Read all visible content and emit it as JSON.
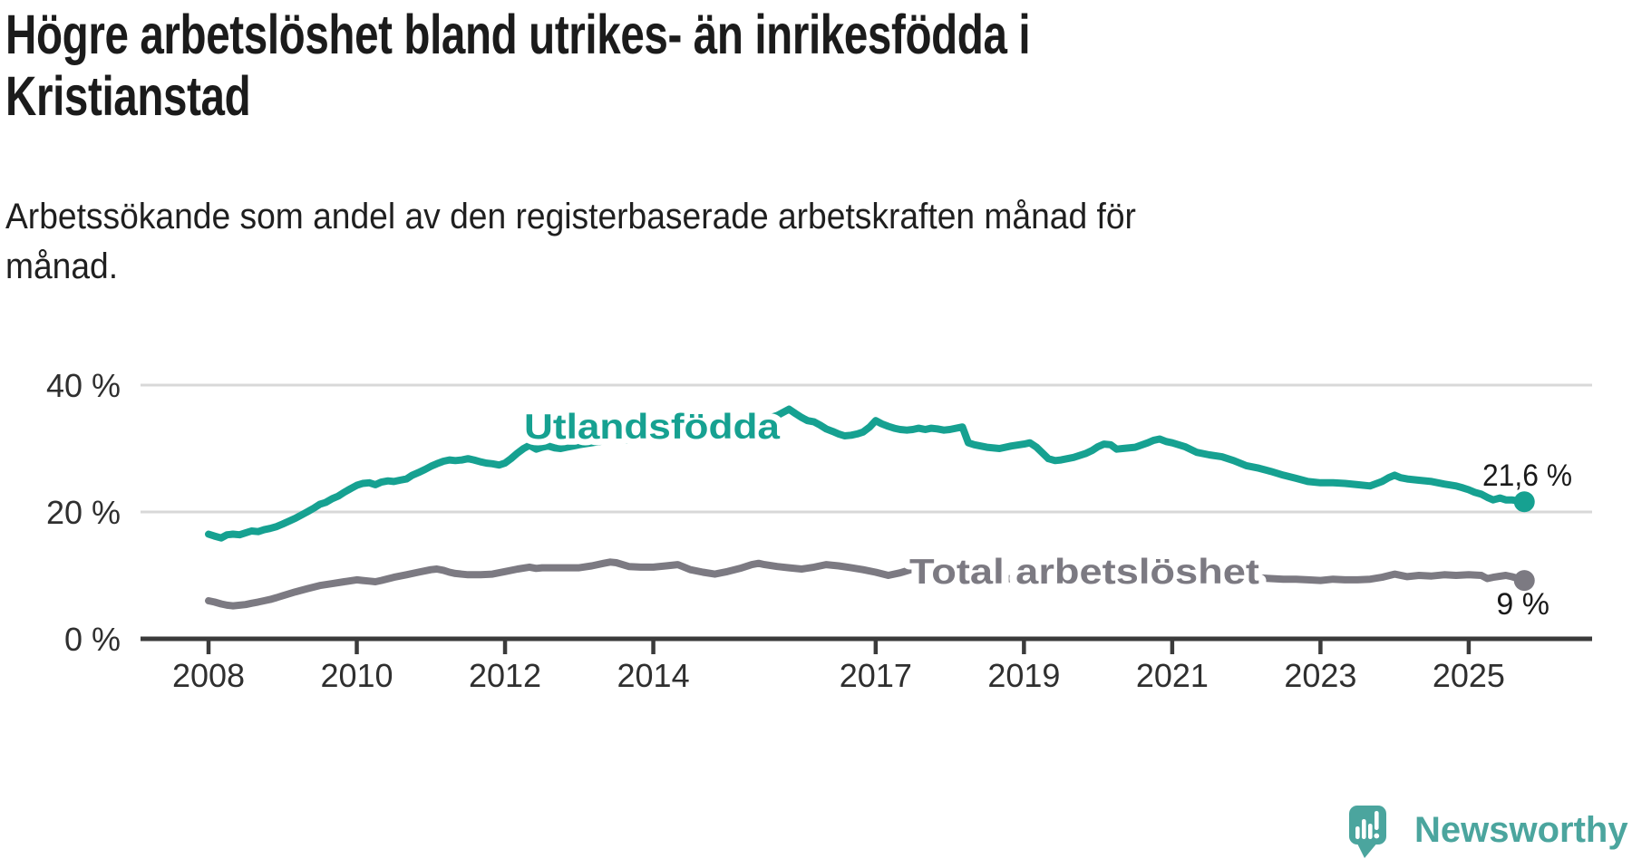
{
  "header": {
    "title_line1": "Högre arbetslöshet bland utrikes- än inrikesfödda i",
    "title_line2": "Kristianstad",
    "subtitle_line1": "Arbetssökande som andel av den registerbaserade arbetskraften månad för",
    "subtitle_line2": "månad."
  },
  "branding": {
    "logo_text": "Newsworthy",
    "logo_icon": "speech-bubble-bar-chart-icon",
    "logo_color": "#4BA59E"
  },
  "colors": {
    "series_foreign": "#16A191",
    "series_total": "#7C7A82",
    "title_text": "#1b1b1b",
    "axis_text": "#2f2f2f",
    "value_label_text": "#1a1a1a",
    "gridline": "#d8d8d8",
    "axis_line": "#3b3b3b",
    "background": "#ffffff"
  },
  "chart_data": {
    "type": "line",
    "title": "Högre arbetslöshet bland utrikes- än inrikesfödda i Kristianstad",
    "subtitle": "Arbetssökande som andel av den registerbaserade arbetskraften månad för månad.",
    "grid": "horizontal-only",
    "x_axis": {
      "range": [
        2007.7,
        2026.1
      ],
      "ticks": [
        {
          "year": 2008,
          "label": "2008"
        },
        {
          "year": 2010,
          "label": "2010"
        },
        {
          "year": 2012,
          "label": "2012"
        },
        {
          "year": 2014,
          "label": "2014"
        },
        {
          "year": 2017,
          "label": "2017"
        },
        {
          "year": 2019,
          "label": "2019"
        },
        {
          "year": 2021,
          "label": "2021"
        },
        {
          "year": 2023,
          "label": "2023"
        },
        {
          "year": 2025,
          "label": "2025"
        }
      ]
    },
    "y_axis": {
      "range": [
        0,
        40
      ],
      "unit": "%",
      "ticks": [
        {
          "value": 0,
          "label": "0 %"
        },
        {
          "value": 20,
          "label": "20 %"
        },
        {
          "value": 40,
          "label": "40 %"
        }
      ]
    },
    "series": [
      {
        "name": "Utlandsfödda",
        "color": "#16A191",
        "end_value": 21.6,
        "end_label": "21,6 %",
        "points": [
          [
            2008.0,
            16.5
          ],
          [
            2008.08,
            16.2
          ],
          [
            2008.17,
            15.9
          ],
          [
            2008.25,
            16.4
          ],
          [
            2008.33,
            16.5
          ],
          [
            2008.42,
            16.4
          ],
          [
            2008.5,
            16.7
          ],
          [
            2008.58,
            17.0
          ],
          [
            2008.67,
            16.9
          ],
          [
            2008.75,
            17.2
          ],
          [
            2008.83,
            17.4
          ],
          [
            2008.92,
            17.7
          ],
          [
            2009.0,
            18.1
          ],
          [
            2009.17,
            19.0
          ],
          [
            2009.33,
            20.0
          ],
          [
            2009.42,
            20.6
          ],
          [
            2009.5,
            21.2
          ],
          [
            2009.58,
            21.5
          ],
          [
            2009.67,
            22.1
          ],
          [
            2009.75,
            22.5
          ],
          [
            2009.83,
            23.1
          ],
          [
            2009.92,
            23.7
          ],
          [
            2010.0,
            24.2
          ],
          [
            2010.08,
            24.5
          ],
          [
            2010.17,
            24.6
          ],
          [
            2010.25,
            24.3
          ],
          [
            2010.33,
            24.7
          ],
          [
            2010.42,
            24.9
          ],
          [
            2010.5,
            24.8
          ],
          [
            2010.58,
            25.0
          ],
          [
            2010.67,
            25.2
          ],
          [
            2010.75,
            25.8
          ],
          [
            2010.83,
            26.2
          ],
          [
            2010.92,
            26.7
          ],
          [
            2011.0,
            27.2
          ],
          [
            2011.08,
            27.6
          ],
          [
            2011.17,
            28.0
          ],
          [
            2011.25,
            28.2
          ],
          [
            2011.33,
            28.1
          ],
          [
            2011.42,
            28.2
          ],
          [
            2011.5,
            28.4
          ],
          [
            2011.58,
            28.2
          ],
          [
            2011.67,
            27.9
          ],
          [
            2011.75,
            27.7
          ],
          [
            2011.83,
            27.6
          ],
          [
            2011.92,
            27.4
          ],
          [
            2012.0,
            27.7
          ],
          [
            2012.08,
            28.4
          ],
          [
            2012.17,
            29.3
          ],
          [
            2012.25,
            30.0
          ],
          [
            2012.33,
            30.5
          ],
          [
            2012.42,
            29.9
          ],
          [
            2012.5,
            30.2
          ],
          [
            2012.58,
            30.4
          ],
          [
            2012.67,
            30.1
          ],
          [
            2012.75,
            30.0
          ],
          [
            2012.83,
            30.2
          ],
          [
            2012.92,
            30.4
          ],
          [
            2013.0,
            30.6
          ],
          [
            2013.17,
            30.9
          ],
          [
            2013.33,
            31.2
          ],
          [
            2013.5,
            31.5
          ],
          [
            2013.67,
            31.3
          ],
          [
            2013.83,
            31.6
          ],
          [
            2014.0,
            31.9
          ],
          [
            2014.17,
            32.2
          ],
          [
            2014.33,
            32.0
          ],
          [
            2014.5,
            32.3
          ],
          [
            2014.67,
            32.6
          ],
          [
            2014.83,
            32.9
          ],
          [
            2015.0,
            33.2
          ],
          [
            2015.17,
            33.6
          ],
          [
            2015.33,
            34.0
          ],
          [
            2015.5,
            34.6
          ],
          [
            2015.67,
            35.2
          ],
          [
            2015.83,
            36.2
          ],
          [
            2015.92,
            35.5
          ],
          [
            2016.0,
            34.9
          ],
          [
            2016.08,
            34.4
          ],
          [
            2016.17,
            34.2
          ],
          [
            2016.25,
            33.7
          ],
          [
            2016.33,
            33.1
          ],
          [
            2016.42,
            32.7
          ],
          [
            2016.5,
            32.3
          ],
          [
            2016.58,
            32.0
          ],
          [
            2016.67,
            32.1
          ],
          [
            2016.75,
            32.3
          ],
          [
            2016.83,
            32.6
          ],
          [
            2016.92,
            33.4
          ],
          [
            2017.0,
            34.4
          ],
          [
            2017.08,
            33.9
          ],
          [
            2017.17,
            33.5
          ],
          [
            2017.25,
            33.2
          ],
          [
            2017.33,
            33.0
          ],
          [
            2017.42,
            32.9
          ],
          [
            2017.5,
            33.0
          ],
          [
            2017.58,
            33.2
          ],
          [
            2017.67,
            33.0
          ],
          [
            2017.75,
            33.2
          ],
          [
            2017.83,
            33.1
          ],
          [
            2017.92,
            32.9
          ],
          [
            2018.0,
            33.0
          ],
          [
            2018.17,
            33.4
          ],
          [
            2018.25,
            30.9
          ],
          [
            2018.33,
            30.6
          ],
          [
            2018.5,
            30.2
          ],
          [
            2018.67,
            30.0
          ],
          [
            2018.83,
            30.4
          ],
          [
            2019.0,
            30.7
          ],
          [
            2019.08,
            30.9
          ],
          [
            2019.17,
            30.2
          ],
          [
            2019.33,
            28.4
          ],
          [
            2019.42,
            28.1
          ],
          [
            2019.5,
            28.2
          ],
          [
            2019.67,
            28.6
          ],
          [
            2019.83,
            29.2
          ],
          [
            2019.92,
            29.7
          ],
          [
            2020.0,
            30.3
          ],
          [
            2020.08,
            30.7
          ],
          [
            2020.17,
            30.6
          ],
          [
            2020.25,
            29.9
          ],
          [
            2020.33,
            30.0
          ],
          [
            2020.5,
            30.2
          ],
          [
            2020.67,
            30.9
          ],
          [
            2020.75,
            31.3
          ],
          [
            2020.83,
            31.5
          ],
          [
            2020.92,
            31.1
          ],
          [
            2021.0,
            30.9
          ],
          [
            2021.17,
            30.3
          ],
          [
            2021.33,
            29.4
          ],
          [
            2021.5,
            29.0
          ],
          [
            2021.67,
            28.7
          ],
          [
            2021.83,
            28.1
          ],
          [
            2022.0,
            27.3
          ],
          [
            2022.17,
            26.9
          ],
          [
            2022.33,
            26.4
          ],
          [
            2022.5,
            25.8
          ],
          [
            2022.67,
            25.3
          ],
          [
            2022.83,
            24.8
          ],
          [
            2023.0,
            24.6
          ],
          [
            2023.17,
            24.6
          ],
          [
            2023.33,
            24.5
          ],
          [
            2023.5,
            24.3
          ],
          [
            2023.67,
            24.1
          ],
          [
            2023.83,
            24.8
          ],
          [
            2023.92,
            25.4
          ],
          [
            2024.0,
            25.8
          ],
          [
            2024.08,
            25.4
          ],
          [
            2024.17,
            25.2
          ],
          [
            2024.33,
            25.0
          ],
          [
            2024.5,
            24.8
          ],
          [
            2024.67,
            24.4
          ],
          [
            2024.83,
            24.1
          ],
          [
            2024.92,
            23.8
          ],
          [
            2025.0,
            23.5
          ],
          [
            2025.08,
            23.1
          ],
          [
            2025.17,
            22.8
          ],
          [
            2025.25,
            22.3
          ],
          [
            2025.33,
            21.9
          ],
          [
            2025.42,
            22.2
          ],
          [
            2025.5,
            21.9
          ],
          [
            2025.58,
            21.9
          ],
          [
            2025.75,
            21.6
          ]
        ]
      },
      {
        "name": "Total arbetslöshet",
        "color": "#7C7A82",
        "end_value": 9.2,
        "end_label": "9 %",
        "points": [
          [
            2008.0,
            6.0
          ],
          [
            2008.08,
            5.8
          ],
          [
            2008.17,
            5.5
          ],
          [
            2008.25,
            5.3
          ],
          [
            2008.33,
            5.2
          ],
          [
            2008.42,
            5.3
          ],
          [
            2008.5,
            5.4
          ],
          [
            2008.58,
            5.6
          ],
          [
            2008.67,
            5.8
          ],
          [
            2008.75,
            6.0
          ],
          [
            2008.83,
            6.2
          ],
          [
            2008.92,
            6.5
          ],
          [
            2009.0,
            6.8
          ],
          [
            2009.17,
            7.4
          ],
          [
            2009.33,
            7.9
          ],
          [
            2009.5,
            8.4
          ],
          [
            2009.67,
            8.7
          ],
          [
            2009.83,
            9.0
          ],
          [
            2010.0,
            9.3
          ],
          [
            2010.08,
            9.2
          ],
          [
            2010.17,
            9.1
          ],
          [
            2010.25,
            9.0
          ],
          [
            2010.33,
            9.2
          ],
          [
            2010.5,
            9.7
          ],
          [
            2010.67,
            10.1
          ],
          [
            2010.83,
            10.5
          ],
          [
            2011.0,
            10.9
          ],
          [
            2011.08,
            11.0
          ],
          [
            2011.17,
            10.8
          ],
          [
            2011.25,
            10.5
          ],
          [
            2011.33,
            10.3
          ],
          [
            2011.5,
            10.1
          ],
          [
            2011.67,
            10.1
          ],
          [
            2011.83,
            10.2
          ],
          [
            2012.0,
            10.6
          ],
          [
            2012.17,
            11.0
          ],
          [
            2012.33,
            11.3
          ],
          [
            2012.42,
            11.1
          ],
          [
            2012.5,
            11.2
          ],
          [
            2012.67,
            11.2
          ],
          [
            2012.83,
            11.2
          ],
          [
            2013.0,
            11.2
          ],
          [
            2013.17,
            11.5
          ],
          [
            2013.33,
            11.9
          ],
          [
            2013.42,
            12.1
          ],
          [
            2013.5,
            12.0
          ],
          [
            2013.67,
            11.4
          ],
          [
            2013.83,
            11.3
          ],
          [
            2014.0,
            11.3
          ],
          [
            2014.17,
            11.5
          ],
          [
            2014.33,
            11.7
          ],
          [
            2014.5,
            10.9
          ],
          [
            2014.67,
            10.5
          ],
          [
            2014.83,
            10.2
          ],
          [
            2015.0,
            10.6
          ],
          [
            2015.17,
            11.1
          ],
          [
            2015.33,
            11.7
          ],
          [
            2015.42,
            11.9
          ],
          [
            2015.5,
            11.7
          ],
          [
            2015.67,
            11.4
          ],
          [
            2015.83,
            11.2
          ],
          [
            2016.0,
            11.0
          ],
          [
            2016.17,
            11.3
          ],
          [
            2016.33,
            11.7
          ],
          [
            2016.5,
            11.5
          ],
          [
            2016.67,
            11.2
          ],
          [
            2016.83,
            10.9
          ],
          [
            2017.0,
            10.5
          ],
          [
            2017.17,
            10.0
          ],
          [
            2017.33,
            10.4
          ],
          [
            2017.5,
            11.0
          ],
          [
            2017.67,
            10.8
          ],
          [
            2017.83,
            10.4
          ],
          [
            2018.0,
            10.0
          ],
          [
            2018.25,
            9.7
          ],
          [
            2018.5,
            9.6
          ],
          [
            2018.75,
            9.5
          ],
          [
            2019.0,
            9.4
          ],
          [
            2019.5,
            9.6
          ],
          [
            2020.0,
            10.2
          ],
          [
            2020.25,
            11.0
          ],
          [
            2020.5,
            11.6
          ],
          [
            2020.75,
            11.8
          ],
          [
            2021.0,
            11.4
          ],
          [
            2021.25,
            11.0
          ],
          [
            2021.5,
            10.6
          ],
          [
            2021.75,
            10.2
          ],
          [
            2022.0,
            9.9
          ],
          [
            2022.17,
            9.6
          ],
          [
            2022.33,
            9.5
          ],
          [
            2022.5,
            9.4
          ],
          [
            2022.67,
            9.4
          ],
          [
            2022.83,
            9.3
          ],
          [
            2023.0,
            9.2
          ],
          [
            2023.17,
            9.4
          ],
          [
            2023.33,
            9.3
          ],
          [
            2023.5,
            9.3
          ],
          [
            2023.67,
            9.4
          ],
          [
            2023.83,
            9.7
          ],
          [
            2024.0,
            10.2
          ],
          [
            2024.17,
            9.8
          ],
          [
            2024.33,
            10.0
          ],
          [
            2024.5,
            9.9
          ],
          [
            2024.67,
            10.1
          ],
          [
            2024.83,
            10.0
          ],
          [
            2025.0,
            10.1
          ],
          [
            2025.17,
            10.0
          ],
          [
            2025.25,
            9.5
          ],
          [
            2025.33,
            9.7
          ],
          [
            2025.5,
            10.0
          ],
          [
            2025.58,
            9.8
          ],
          [
            2025.67,
            9.5
          ],
          [
            2025.75,
            9.2
          ]
        ]
      }
    ],
    "legend_position": "inline-labels-on-lines"
  }
}
